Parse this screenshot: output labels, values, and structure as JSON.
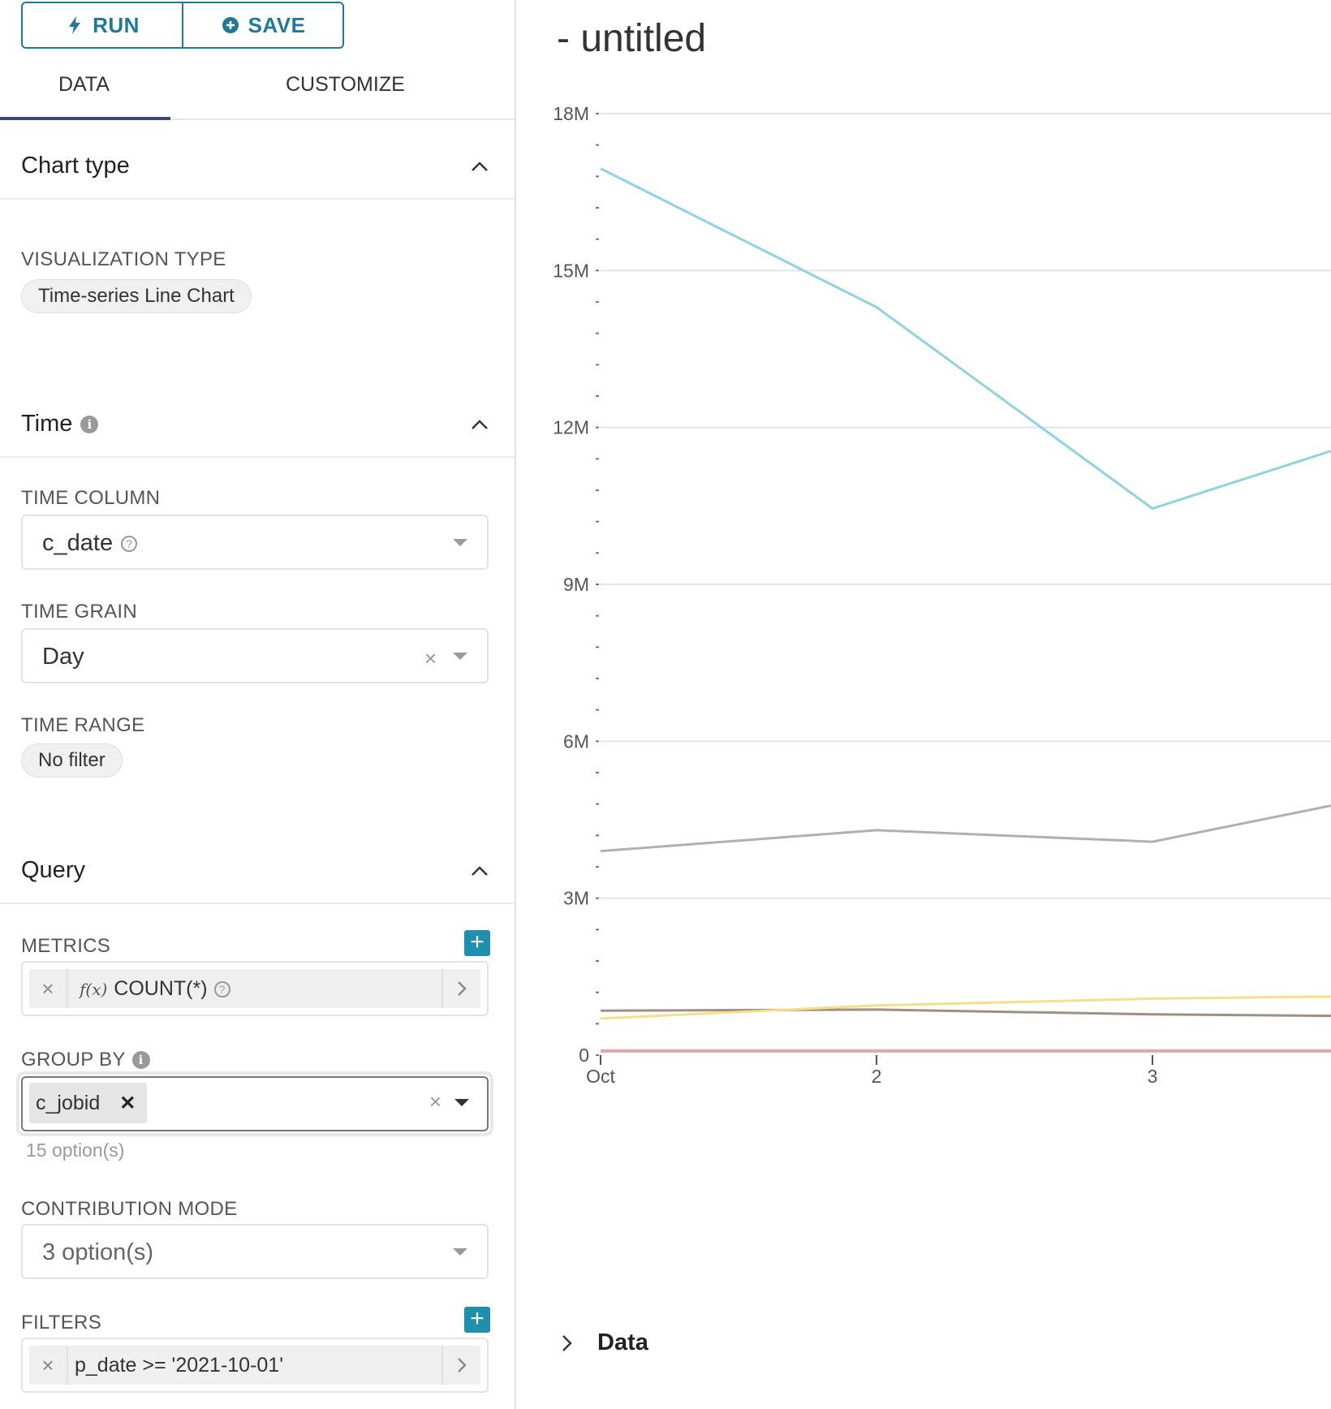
{
  "toolbar": {
    "run_label": "RUN",
    "save_label": "SAVE"
  },
  "tabs": [
    {
      "label": "DATA",
      "active": true
    },
    {
      "label": "CUSTOMIZE",
      "active": false
    }
  ],
  "sections": {
    "chart_type": {
      "title": "Chart type",
      "viz_label": "VISUALIZATION TYPE",
      "viz_value": "Time-series Line Chart"
    },
    "time": {
      "title": "Time",
      "time_column_label": "TIME COLUMN",
      "time_column_value": "c_date",
      "time_grain_label": "TIME GRAIN",
      "time_grain_value": "Day",
      "time_range_label": "TIME RANGE",
      "time_range_value": "No filter"
    },
    "query": {
      "title": "Query",
      "metrics_label": "METRICS",
      "metric_value": "COUNT(*)",
      "metric_fx": "f(x)",
      "group_by_label": "GROUP BY",
      "group_by_tag": "c_jobid",
      "group_by_hint": "15 option(s)",
      "contribution_label": "CONTRIBUTION MODE",
      "contribution_placeholder": "3 option(s)",
      "filters_label": "FILTERS",
      "filter_value": "p_date >= '2021-10-01'"
    }
  },
  "chart_title": "- untitled",
  "data_toggle_label": "Data",
  "colors": {
    "accent": "#1f7a99",
    "plus": "#1f8fae"
  },
  "chart_data": {
    "type": "line",
    "x": [
      "Oct",
      "2",
      "3"
    ],
    "ylim": [
      0,
      18000000
    ],
    "yticks": [
      0,
      3000000,
      6000000,
      9000000,
      12000000,
      15000000,
      18000000
    ],
    "ytick_labels": [
      "0",
      "3M",
      "6M",
      "9M",
      "12M",
      "15M",
      "18M"
    ],
    "series": [
      {
        "color": "#8fd3e0",
        "values": [
          16950000,
          14300000,
          10450000
        ],
        "end_value": 11550000
      },
      {
        "color": "#b0b0b0",
        "values": [
          3900000,
          4300000,
          4080000
        ],
        "end_value": 4770000
      },
      {
        "color": "#a08f7e",
        "values": [
          850000,
          870000,
          780000
        ],
        "end_value": 750000
      },
      {
        "color": "#f5e08a",
        "values": [
          700000,
          950000,
          1080000
        ],
        "end_value": 1120000
      },
      {
        "color": "#e8a3a8",
        "values": [
          80000,
          80000,
          80000
        ],
        "end_value": 80000
      }
    ]
  }
}
